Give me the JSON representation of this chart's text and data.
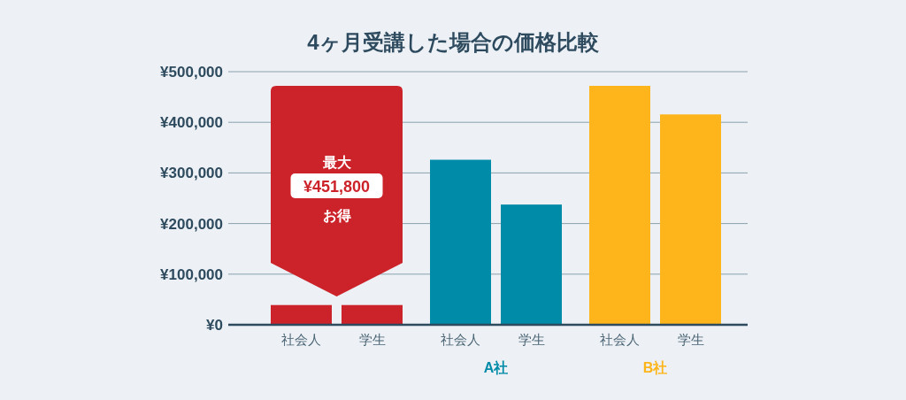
{
  "chart_data": {
    "type": "bar",
    "title": "4ヶ月受講した場合の価格比較",
    "categories": [
      "社会人",
      "学生",
      "社会人",
      "学生",
      "社会人",
      "学生"
    ],
    "values": [
      39000,
      39000,
      326000,
      237500,
      472000,
      415600
    ],
    "colors": [
      "#cc2229",
      "#cc2229",
      "#008ba8",
      "#008ba8",
      "#fdb51b",
      "#fdb51b"
    ],
    "ylim": [
      0,
      500000
    ],
    "yticks": [
      {
        "value": 0,
        "label": "¥0"
      },
      {
        "value": 100000,
        "label": "¥100,000"
      },
      {
        "value": 200000,
        "label": "¥200,000"
      },
      {
        "value": 300000,
        "label": "¥300,000"
      },
      {
        "value": 400000,
        "label": "¥400,000"
      },
      {
        "value": 500000,
        "label": "¥500,000"
      }
    ],
    "grid": "y",
    "annotations": [
      "最大",
      "¥451,800",
      "お得",
      "A社",
      "B社"
    ]
  }
}
